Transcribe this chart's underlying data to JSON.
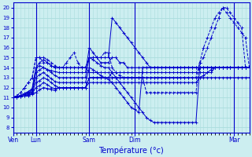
{
  "background_color": "#cceef0",
  "grid_color": "#aadddd",
  "line_color": "#0000cc",
  "xlabel": "Température (°c)",
  "ylim": [
    7.5,
    20.5
  ],
  "yticks": [
    8,
    9,
    10,
    11,
    12,
    13,
    14,
    15,
    16,
    17,
    18,
    19,
    20
  ],
  "xtick_labels": [
    "Ven",
    "Lun",
    "",
    "Sam",
    "",
    "Dim",
    "",
    "",
    "Mar"
  ],
  "xlim": [
    0,
    62
  ],
  "num_points": 63,
  "series": [
    [
      11,
      11.1,
      11.2,
      11.4,
      11.6,
      11.9,
      14,
      14.5,
      14.8,
      14.5,
      14.2,
      14,
      14,
      14,
      14,
      14,
      14,
      14,
      14,
      14,
      15,
      15,
      15,
      15,
      15,
      15,
      19,
      18.5,
      18,
      17.5,
      17,
      16.5,
      16,
      15.5,
      15,
      14.5,
      14,
      14,
      14,
      14,
      14,
      14,
      14,
      14,
      14,
      14,
      14,
      14,
      14,
      14,
      14,
      14,
      14,
      14,
      14,
      14,
      14,
      14,
      14,
      14,
      14,
      14,
      14
    ],
    [
      11,
      11.1,
      11.2,
      11.4,
      11.6,
      11.8,
      14,
      14.2,
      14,
      13.8,
      13.7,
      13.6,
      13.5,
      13.5,
      13.5,
      13.5,
      13.5,
      13.5,
      13.5,
      13.5,
      16,
      15.5,
      15,
      14.5,
      14.5,
      14.5,
      15,
      15,
      14.5,
      14.5,
      14,
      14,
      14,
      14,
      14,
      14,
      14,
      14,
      14,
      14,
      14,
      14,
      14,
      14,
      14,
      14,
      14,
      14,
      14,
      14,
      14,
      14,
      14,
      14,
      14,
      14,
      14,
      14,
      14,
      14,
      14,
      14,
      14
    ],
    [
      11,
      11.1,
      11.2,
      11.3,
      11.5,
      11.7,
      13.5,
      13.8,
      14,
      13.8,
      13.5,
      13.2,
      13,
      13,
      13,
      13,
      13,
      13,
      13,
      13,
      15,
      14.8,
      14.5,
      14.2,
      14,
      14,
      13.5,
      13,
      12.5,
      12,
      11.5,
      11,
      10.5,
      10,
      9.5,
      9,
      8.7,
      8.5,
      8.5,
      8.5,
      8.5,
      8.5,
      8.5,
      8.5,
      8.5,
      8.5,
      8.5,
      8.5,
      8.5,
      14,
      14,
      14,
      14,
      14,
      14,
      14,
      14,
      14,
      14,
      14,
      14,
      14,
      14
    ],
    [
      11,
      11.1,
      11.2,
      11.3,
      11.4,
      11.6,
      13,
      13.3,
      13.5,
      13.2,
      12.9,
      12.6,
      12.5,
      12.5,
      12.5,
      12.5,
      12.5,
      12.5,
      12.5,
      12.5,
      14,
      13.8,
      13.5,
      13.2,
      13,
      12.8,
      12.5,
      12,
      11.5,
      11,
      10.5,
      10,
      9.8,
      9.5,
      14,
      14,
      14,
      14,
      14,
      14,
      14,
      14,
      14,
      14,
      14,
      14,
      14,
      14,
      14,
      14,
      14,
      14,
      14,
      14,
      14,
      14,
      14,
      14,
      14,
      14,
      14,
      14,
      14
    ],
    [
      11,
      11.05,
      11.1,
      11.2,
      11.3,
      11.5,
      12.5,
      12.7,
      13,
      12.8,
      12.5,
      12.2,
      12,
      12,
      12,
      12,
      12,
      12,
      12,
      12,
      13,
      13,
      13,
      13,
      13,
      13,
      13,
      13,
      13,
      13,
      13,
      13,
      13,
      13,
      13,
      13,
      13,
      13,
      13,
      13,
      13,
      13,
      13,
      13,
      13,
      13,
      13,
      13,
      13,
      13,
      13,
      13,
      13,
      13,
      13,
      13,
      13,
      13,
      13,
      13,
      13,
      13,
      13
    ],
    [
      11,
      11.05,
      11.1,
      11.15,
      11.2,
      11.4,
      12,
      12.2,
      12.5,
      12.3,
      12,
      11.9,
      12,
      12,
      12,
      12,
      12,
      12,
      12,
      12,
      12.5,
      12.5,
      12.5,
      12.5,
      12.5,
      12.5,
      12.5,
      12.5,
      12.5,
      12.5,
      12.5,
      12.5,
      12.5,
      12.5,
      12.5,
      12.5,
      12.5,
      12.5,
      12.5,
      12.5,
      12.5,
      12.5,
      12.5,
      12.5,
      12.5,
      12.5,
      12.5,
      12.5,
      12.5,
      13,
      13.2,
      13.5,
      13.8,
      14,
      14,
      14,
      14,
      14,
      14,
      14,
      14,
      14,
      14
    ],
    [
      11,
      11.05,
      11.1,
      11.15,
      11.2,
      11.3,
      11.5,
      11.8,
      12,
      11.9,
      11.8,
      11.7,
      12,
      12,
      12,
      12,
      12,
      12,
      12,
      12,
      13,
      13,
      13,
      13,
      13,
      13,
      13.5,
      13.5,
      13.5,
      13.5,
      13.5,
      13.5,
      13.5,
      13.5,
      13.5,
      13.5,
      13.5,
      13.5,
      13.5,
      13.5,
      13.5,
      13.5,
      13.5,
      13.5,
      13.5,
      13.5,
      13.5,
      13.5,
      13.5,
      13.5,
      13.5,
      13.5,
      13.5,
      14,
      14,
      14,
      14,
      14,
      14,
      14,
      14,
      14,
      14
    ],
    [
      11,
      11.2,
      11.5,
      12,
      12.5,
      13,
      15,
      15,
      15,
      14.8,
      14.5,
      14.2,
      14,
      14,
      14,
      14,
      14,
      14,
      14,
      14,
      15,
      15,
      15,
      15,
      15.5,
      15.5,
      14,
      13.5,
      13.2,
      13,
      13,
      13,
      13,
      13,
      13,
      13,
      13,
      13,
      13,
      13,
      13,
      13,
      13,
      13,
      13,
      13,
      13,
      13,
      13,
      14.5,
      15,
      16,
      17,
      18,
      19,
      20,
      19.5,
      19,
      18.5,
      18,
      17.5,
      17,
      14
    ],
    [
      11,
      11.2,
      11.5,
      12,
      12.5,
      13,
      15,
      15,
      14.5,
      14.5,
      14.2,
      14,
      14,
      14,
      14.5,
      15,
      15.5,
      14.5,
      14,
      14,
      13.5,
      13.5,
      13.5,
      13.5,
      13.5,
      13.5,
      13,
      13,
      13,
      13,
      13,
      13,
      13,
      13,
      13,
      11.5,
      11.5,
      11.5,
      11.5,
      11.5,
      11.5,
      11.5,
      11.5,
      11.5,
      11.5,
      11.5,
      11.5,
      11.5,
      11.5,
      14.5,
      16,
      17,
      18,
      19,
      19.5,
      20,
      20,
      19.5,
      19,
      18.5,
      18,
      14,
      14
    ]
  ],
  "line_styles": [
    "-",
    "-",
    "-",
    "-",
    "-",
    "-",
    "-",
    "--",
    "--"
  ],
  "sep_positions": [
    0,
    6,
    20,
    32,
    58
  ],
  "sep_labels": [
    "Ven",
    "Lun",
    "Sam",
    "Dim",
    "Mar"
  ]
}
